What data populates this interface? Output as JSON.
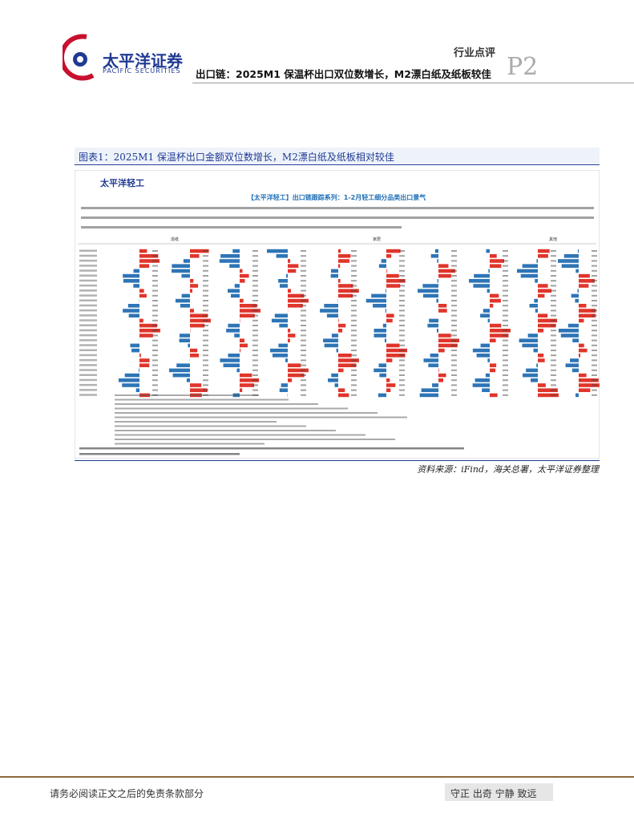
{
  "header": {
    "brand": "太平洋证券",
    "brand_en": "PACIFIC SECURITIES",
    "tag": "行业点评",
    "title": "出口链：2025M1 保温杯出口双位数增长，M2漂白纸及纸板较佳",
    "page": "P2"
  },
  "figure": {
    "caption": "图表1：2025M1 保温杯出口金额双位数增长，M2漂白纸及纸板相对较佳",
    "inner_brand": "太平洋轻工",
    "inner_title": "【太平洋轻工】出口链跟踪系列：1-2月轻工细分品类出口景气",
    "groups": [
      "造纸",
      "家居",
      "其他"
    ],
    "source": "资料来源：iFind，海关总署，太平洋证券整理"
  },
  "footer": {
    "disclaimer": "请务必阅读正文之后的免责条款部分",
    "motto": "守正 出奇 宁静 致远"
  }
}
